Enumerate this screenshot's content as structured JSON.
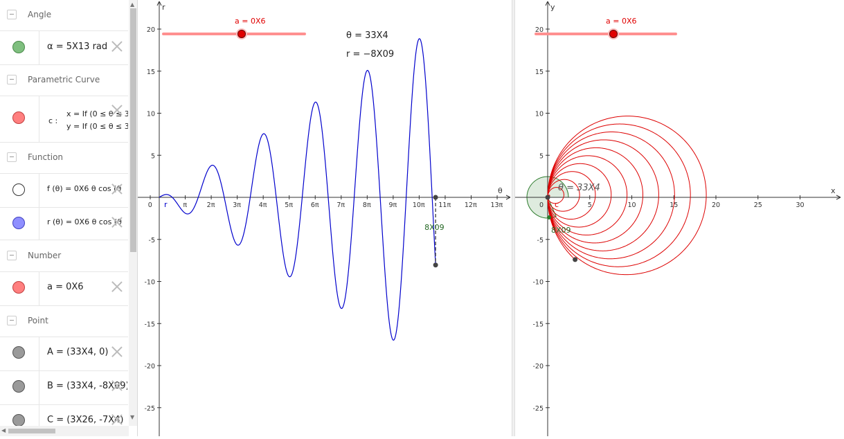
{
  "algebra": {
    "categories": [
      {
        "label": "Angle"
      },
      {
        "label": "Parametric Curve"
      },
      {
        "label": "Function"
      },
      {
        "label": "Number"
      },
      {
        "label": "Point"
      }
    ],
    "items": [
      {
        "definition": "α = 5X13 rad",
        "color": "#7fbf7f"
      },
      {
        "line1": "x = If (0 ≤ θ ≤ 3",
        "line2": "y = If (0 ≤ θ ≤ 3",
        "prefix": "c :",
        "color": "#ff7f7f"
      },
      {
        "definition": "f (θ)  =  0X6 θ  cos (θ",
        "color": "#ffffff"
      },
      {
        "definition": "r (θ)  =  0X6 θ  cos (θ",
        "color": "#8f8fff"
      },
      {
        "definition": "a = 0X6",
        "color": "#ff7f7f"
      },
      {
        "definition": "A = (33X4, 0)",
        "color": "#9a9a9a"
      },
      {
        "definition": "B = (33X4, -8X09)",
        "color": "#9a9a9a"
      },
      {
        "definition": "C = (3X26, -7X4)",
        "color": "#9a9a9a"
      }
    ]
  },
  "graph1": {
    "slider_label": "a = 0X6",
    "theta_text": "θ = 33X4",
    "r_text": "r = −8X09",
    "axis_x": "θ",
    "axis_y": "r",
    "x_ticks": [
      "0",
      "π",
      "2π",
      "3π",
      "4π",
      "5π",
      "6π",
      "7π",
      "8π",
      "9π",
      "10π",
      "11π",
      "12π",
      "13π"
    ],
    "y_ticks": [
      "20",
      "15",
      "10",
      "5",
      "-5",
      "-10",
      "-15",
      "-20",
      "-25"
    ],
    "r_label": "r",
    "b_value_label": "8X09",
    "colors": {
      "curve": "#0000cc",
      "slider": "#ff8080",
      "dash": "#555555"
    }
  },
  "graph2": {
    "slider_label": "a = 0X6",
    "theta_text": "θ = 33X4",
    "axis_x": "x",
    "axis_y": "y",
    "x_ticks": [
      "0",
      "5",
      "10",
      "15",
      "20",
      "25",
      "30"
    ],
    "y_ticks": [
      "20",
      "15",
      "10",
      "5",
      "-5",
      "-10",
      "-15",
      "-20",
      "-25"
    ],
    "c_label": "c",
    "value_label": "8X09",
    "colors": {
      "curve": "#dd0000",
      "angle": "#d6e6d6",
      "slider": "#ff8080"
    }
  },
  "chart_data": {
    "type": "line",
    "series": [
      {
        "function": "r(θ) = a θ cos(θ)",
        "a": 0.6,
        "theta_range": [
          0,
          33.4
        ]
      }
    ],
    "xlim": [
      -0.6,
      41.5
    ],
    "ylim": [
      -28,
      23
    ]
  }
}
